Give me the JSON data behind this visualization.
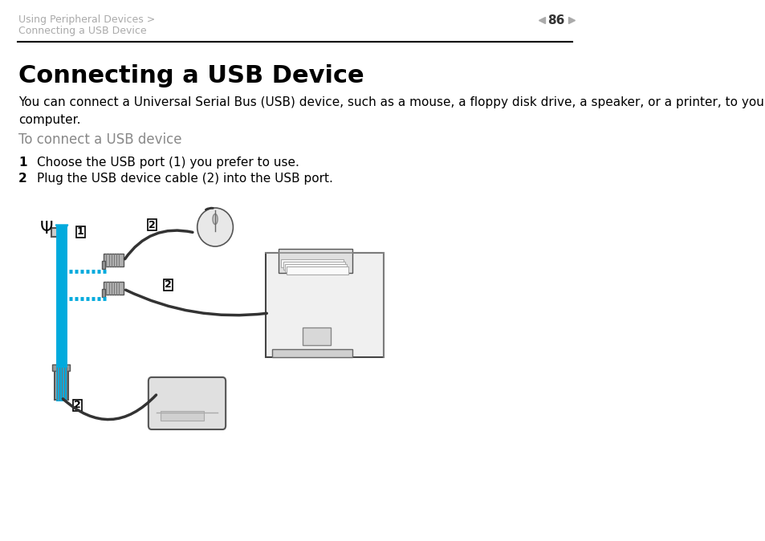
{
  "bg_color": "#ffffff",
  "header_text_line1": "Using Peripheral Devices >",
  "header_text_line2": "Connecting a USB Device",
  "header_text_color": "#aaaaaa",
  "page_number": "86",
  "separator_color": "#000000",
  "title": "Connecting a USB Device",
  "title_fontsize": 22,
  "title_color": "#000000",
  "body_text": "You can connect a Universal Serial Bus (USB) device, such as a mouse, a floppy disk drive, a speaker, or a printer, to your\ncomputer.",
  "body_fontsize": 11,
  "body_color": "#000000",
  "subheading": "To connect a USB device",
  "subheading_color": "#888888",
  "subheading_fontsize": 12,
  "step1_num": "1",
  "step1_text": "Choose the USB port (1) you prefer to use.",
  "step2_num": "2",
  "step2_text": "Plug the USB device cable (2) into the USB port.",
  "step_fontsize": 11,
  "step_color": "#000000",
  "arrow_color": "#00aadd",
  "dash_color": "#00aadd",
  "label_box_color": "#000000",
  "label_text_color": "#000000"
}
